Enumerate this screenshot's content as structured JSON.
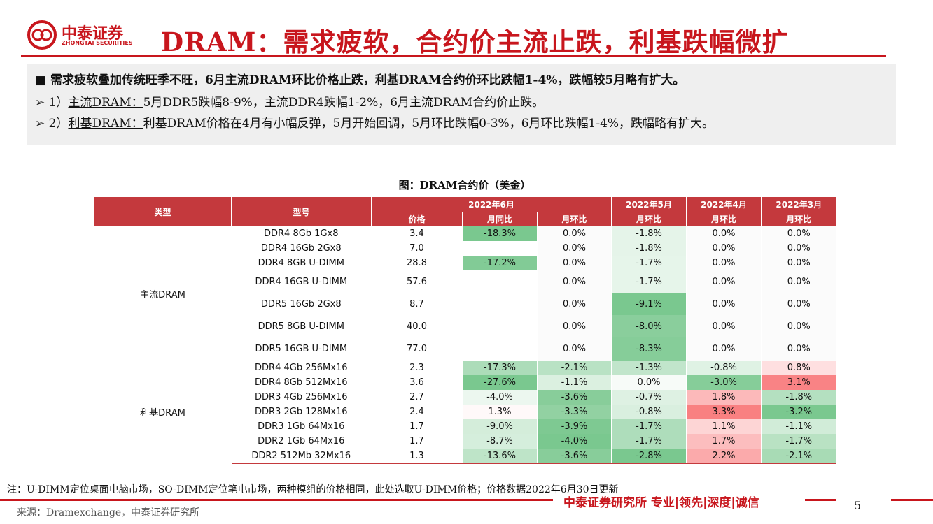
{
  "header": {
    "logo_cn": "中泰证券",
    "logo_en": "ZHONGTAI SECURITIES",
    "title": "DRAM：需求疲软，合约价主流止跌，利基跌幅微扩"
  },
  "summary": {
    "lead": "需求疲软叠加传统旺季不旺，6月主流DRAM环比价格止跌，利基DRAM合约价环比跌幅1-4%，跌幅较5月略有扩大。",
    "points": [
      {
        "prefix": "1）",
        "label": "主流DRAM：",
        "text": "5月DDR5跌幅8-9%，主流DDR4跌幅1-2%，6月主流DRAM合约价止跌。"
      },
      {
        "prefix": "2）",
        "label": "利基DRAM：",
        "text": "利基DRAM价格在4月有小幅反弹，5月开始回调，5月环比跌幅0-3%，6月环比跌幅1-4%，跌幅略有扩大。"
      }
    ]
  },
  "table": {
    "caption": "图：DRAM合约价（美金）",
    "head_type": "类型",
    "head_model": "型号",
    "months": [
      "2022年6月",
      "2022年5月",
      "2022年4月",
      "2022年3月"
    ],
    "subheaders": [
      "价格",
      "月同比",
      "月环比",
      "月环比",
      "月环比",
      "月环比"
    ],
    "groups": [
      {
        "name": "主流DRAM",
        "rows": [
          [
            "DDR4 8Gb 1Gx8",
            "3.4",
            "-18.3%",
            "0.0%",
            "-1.8%",
            "0.0%",
            "0.0%"
          ],
          [
            "DDR4 16Gb 2Gx8",
            "7.0",
            null,
            "0.0%",
            "-1.8%",
            "0.0%",
            "0.0%"
          ],
          [
            "DDR4 8GB U-DIMM",
            "28.8",
            "-17.2%",
            "0.0%",
            "-1.7%",
            "0.0%",
            "0.0%"
          ],
          [
            "DDR4 16GB U-DIMM",
            "57.6",
            null,
            "0.0%",
            "-1.7%",
            "0.0%",
            "0.0%"
          ],
          [
            "DDR5 16Gb 2Gx8",
            "8.7",
            null,
            "0.0%",
            "-9.1%",
            "0.0%",
            "0.0%"
          ],
          [
            "DDR5 8GB U-DIMM",
            "40.0",
            null,
            "0.0%",
            "-8.0%",
            "0.0%",
            "0.0%"
          ],
          [
            "DDR5 16GB U-DIMM",
            "77.0",
            null,
            "0.0%",
            "-8.3%",
            "0.0%",
            "0.0%"
          ]
        ]
      },
      {
        "name": "利基DRAM",
        "rows": [
          [
            "DDR4 4Gb 256Mx16",
            "2.3",
            "-17.3%",
            "-2.1%",
            "-1.3%",
            "-0.8%",
            "0.8%"
          ],
          [
            "DDR4 8Gb 512Mx16",
            "3.6",
            "-27.6%",
            "-1.1%",
            "0.0%",
            "-3.0%",
            "3.1%"
          ],
          [
            "DDR3 4Gb 256Mx16",
            "2.7",
            "-4.0%",
            "-3.6%",
            "-0.7%",
            "1.8%",
            "-1.8%"
          ],
          [
            "DDR3 2Gb 128Mx16",
            "2.4",
            "1.3%",
            "-3.3%",
            "-0.8%",
            "3.3%",
            "-3.2%"
          ],
          [
            "DDR3 1Gb 64Mx16",
            "1.7",
            "-9.0%",
            "-3.9%",
            "-1.7%",
            "1.1%",
            "-1.1%"
          ],
          [
            "DDR2 1Gb 64Mx16",
            "1.7",
            "-8.7%",
            "-4.0%",
            "-1.7%",
            "1.7%",
            "-1.7%"
          ],
          [
            "DDR2 512Mb 32Mx16",
            "1.3",
            "-13.6%",
            "-3.6%",
            "-2.8%",
            "2.2%",
            "-2.1%"
          ]
        ]
      }
    ]
  },
  "footer": {
    "note": "注：U-DIMM定位桌面电脑市场，SO-DIMM定位笔电市场，两种模组的价格相同，此处选取U-DIMM价格；价格数据2022年6月30日更新",
    "source": "来源：Dramexchange，中泰证券研究所",
    "brand": "中泰证券研究所 专业|领先|深度|诚信",
    "page": "5"
  }
}
